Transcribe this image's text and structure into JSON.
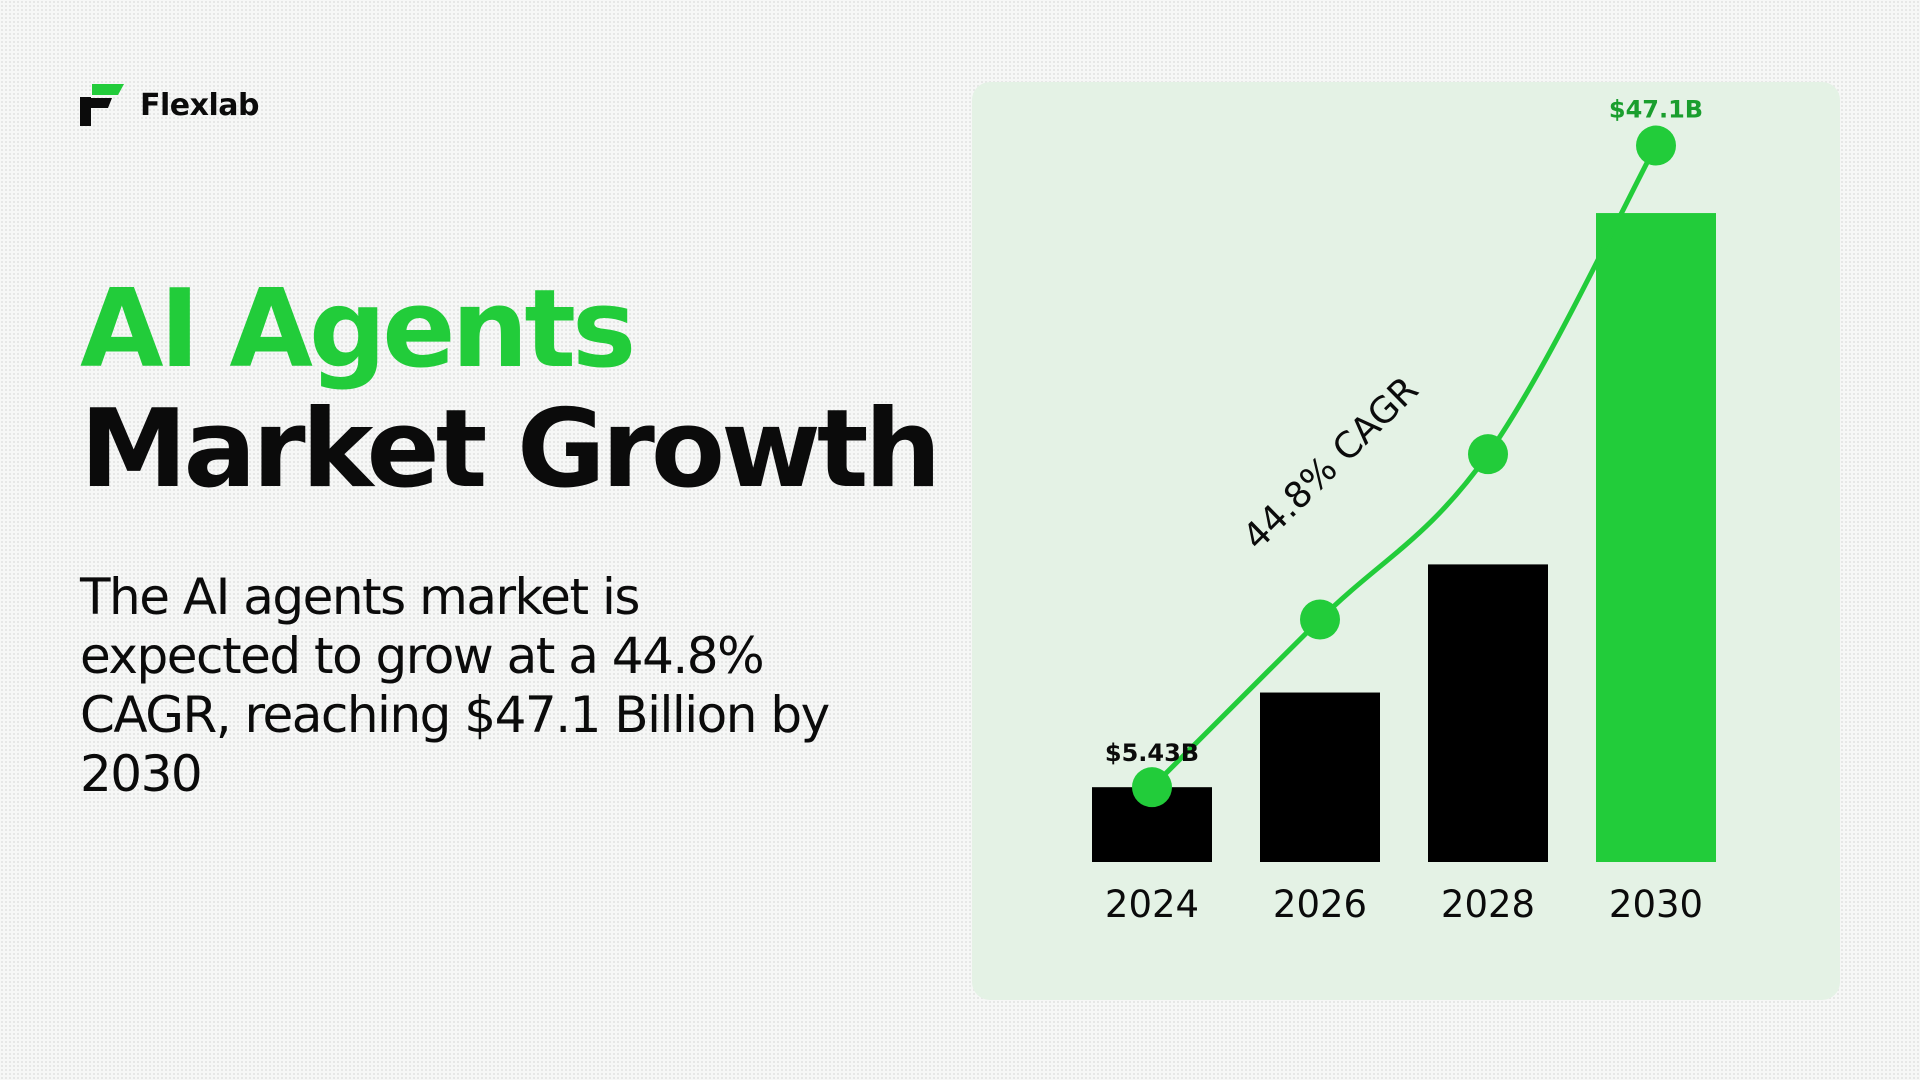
{
  "brand": {
    "name": "Flexlab",
    "logo_icon": "flexlab-logo-icon"
  },
  "headline": {
    "line1": "AI Agents",
    "line2": "Market Growth"
  },
  "description": "The AI agents market is expected to grow at a 44.8% CAGR, reaching $47.1 Billion by 2030",
  "colors": {
    "accent": "#22cc3a",
    "bar_default": "#000000",
    "bar_highlight": "#22cc3a",
    "card_background": "#e4f2e5",
    "label_green": "#1a9e2e"
  },
  "chart_data": {
    "type": "bar",
    "categories": [
      "2024",
      "2026",
      "2028",
      "2030"
    ],
    "values": [
      5.43,
      12.3,
      21.6,
      47.1
    ],
    "unit": "$B",
    "highlight_index": 3,
    "data_labels": [
      "$5.43B",
      "",
      "",
      "$47.1B"
    ],
    "trend_line": {
      "values": [
        5.43,
        17.6,
        29.6,
        52.0
      ]
    },
    "annotation": "44.8% CAGR",
    "title": "",
    "xlabel": "",
    "ylabel": "",
    "ylim": [
      0,
      54
    ],
    "grid": false,
    "legend": "none"
  }
}
